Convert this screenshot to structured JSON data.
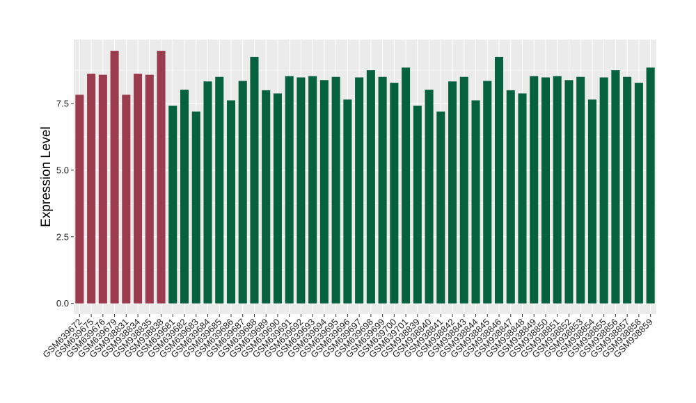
{
  "chart_data": {
    "type": "bar",
    "title": "",
    "xlabel": "",
    "ylabel": "Expression Level",
    "ylim": [
      -0.4,
      9.9
    ],
    "yticks": [
      "0.0",
      "2.5",
      "5.0",
      "7.5"
    ],
    "grid": true,
    "legend": "none",
    "colors": {
      "group_a": "#9b3c4e",
      "group_b": "#05613f",
      "panel_bg": "#ebebeb",
      "grid": "#ffffff"
    },
    "categories": [
      "GSM639672",
      "GSM639675",
      "GSM639676",
      "GSM639679",
      "GSM938831",
      "GSM938834",
      "GSM938835",
      "GSM938838",
      "GSM639681",
      "GSM639682",
      "GSM639683",
      "GSM639684",
      "GSM639685",
      "GSM639686",
      "GSM639687",
      "GSM639688",
      "GSM639689",
      "GSM639690",
      "GSM639691",
      "GSM639692",
      "GSM639693",
      "GSM639694",
      "GSM639695",
      "GSM639696",
      "GSM639697",
      "GSM639698",
      "GSM639699",
      "GSM639700",
      "GSM639701",
      "GSM938839",
      "GSM938840",
      "GSM938841",
      "GSM938842",
      "GSM938843",
      "GSM938844",
      "GSM938845",
      "GSM938846",
      "GSM938847",
      "GSM938848",
      "GSM938849",
      "GSM938850",
      "GSM938851",
      "GSM938852",
      "GSM938853",
      "GSM938854",
      "GSM938855",
      "GSM938856",
      "GSM938857",
      "GSM938858",
      "GSM938859"
    ],
    "values": [
      7.83,
      8.62,
      8.58,
      9.48,
      7.83,
      8.62,
      8.58,
      9.48,
      7.42,
      8.02,
      7.2,
      8.33,
      8.5,
      7.62,
      8.35,
      9.25,
      8.0,
      7.88,
      8.53,
      8.48,
      8.53,
      8.38,
      8.5,
      7.65,
      8.48,
      8.75,
      8.5,
      8.28,
      8.85,
      7.42,
      8.02,
      7.2,
      8.33,
      8.5,
      7.62,
      8.35,
      9.25,
      8.0,
      7.88,
      8.53,
      8.48,
      8.53,
      8.38,
      8.5,
      7.65,
      8.48,
      8.75,
      8.5,
      8.28,
      8.85
    ],
    "groups": [
      "a",
      "a",
      "a",
      "a",
      "a",
      "a",
      "a",
      "a",
      "b",
      "b",
      "b",
      "b",
      "b",
      "b",
      "b",
      "b",
      "b",
      "b",
      "b",
      "b",
      "b",
      "b",
      "b",
      "b",
      "b",
      "b",
      "b",
      "b",
      "b",
      "b",
      "b",
      "b",
      "b",
      "b",
      "b",
      "b",
      "b",
      "b",
      "b",
      "b",
      "b",
      "b",
      "b",
      "b",
      "b",
      "b",
      "b",
      "b",
      "b",
      "b"
    ]
  }
}
